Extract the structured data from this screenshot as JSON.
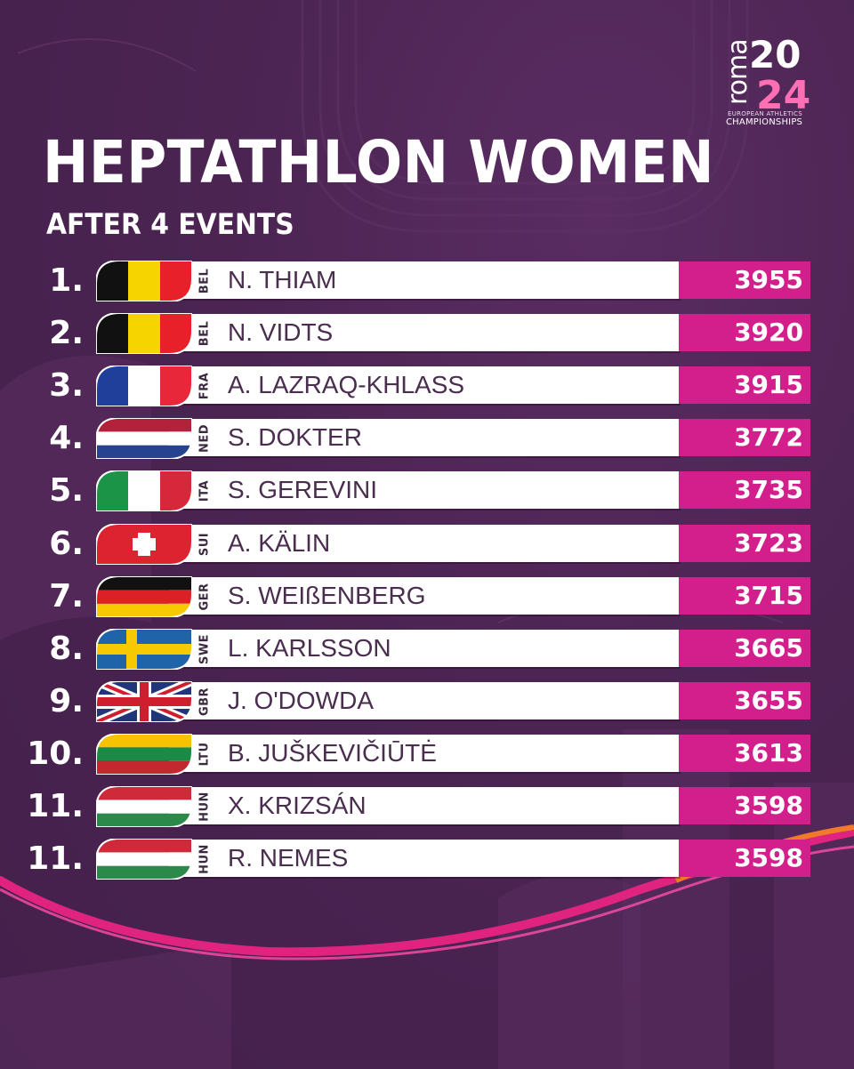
{
  "header": {
    "title": "HEPTATHLON WOMEN",
    "subtitle": "AFTER 4 EVENTS"
  },
  "logo": {
    "wordmark": "roma",
    "year_top": "20",
    "year_bottom": "24",
    "tagline": "EUROPEAN ATHLETICS",
    "championships": "CHAMPIONSHIPS"
  },
  "colors": {
    "background": "#4a2350",
    "score_bar": "#d21f8b",
    "name_text": "#4a2d4f"
  },
  "standings": [
    {
      "rank": "1.",
      "country": "BEL",
      "flag": "belgium-flag",
      "name": "N. THIAM",
      "points": "3955"
    },
    {
      "rank": "2.",
      "country": "BEL",
      "flag": "belgium-flag",
      "name": "N. VIDTS",
      "points": "3920"
    },
    {
      "rank": "3.",
      "country": "FRA",
      "flag": "france-flag",
      "name": "A. LAZRAQ-KHLASS",
      "points": "3915"
    },
    {
      "rank": "4.",
      "country": "NED",
      "flag": "netherlands-flag",
      "name": "S. DOKTER",
      "points": "3772"
    },
    {
      "rank": "5.",
      "country": "ITA",
      "flag": "italy-flag",
      "name": "S. GEREVINI",
      "points": "3735"
    },
    {
      "rank": "6.",
      "country": "SUI",
      "flag": "switzerland-flag",
      "name": "A. KÄLIN",
      "points": "3723"
    },
    {
      "rank": "7.",
      "country": "GER",
      "flag": "germany-flag",
      "name": "S. WEIßENBERG",
      "points": "3715"
    },
    {
      "rank": "8.",
      "country": "SWE",
      "flag": "sweden-flag",
      "name": "L. KARLSSON",
      "points": "3665"
    },
    {
      "rank": "9.",
      "country": "GBR",
      "flag": "uk-flag",
      "name": "J. O'DOWDA",
      "points": "3655"
    },
    {
      "rank": "10.",
      "country": "LTU",
      "flag": "lithuania-flag",
      "name": "B. JUŠKEVIČIŪTĖ",
      "points": "3613"
    },
    {
      "rank": "11.",
      "country": "HUN",
      "flag": "hungary-flag",
      "name": "X. KRIZSÁN",
      "points": "3598"
    },
    {
      "rank": "11.",
      "country": "HUN",
      "flag": "hungary-flag",
      "name": "R. NEMES",
      "points": "3598"
    }
  ]
}
